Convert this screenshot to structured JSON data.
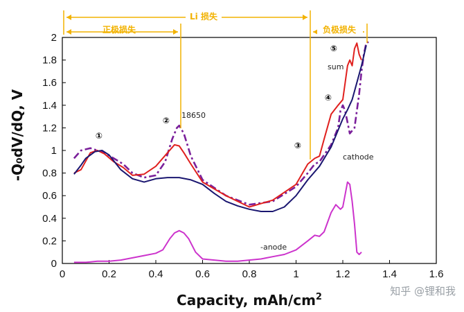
{
  "chart_data": {
    "type": "line",
    "xlabel": "Capacity, mAh/cm",
    "xlabel_sup": "2",
    "ylabel": "-Q₀dV/dQ, V",
    "xlim": [
      0,
      1.6
    ],
    "ylim": [
      0,
      2
    ],
    "xticks": [
      "0",
      "0.2",
      "0.4",
      "0.6",
      "0.8",
      "1",
      "1.2",
      "1.4",
      "1.6"
    ],
    "yticks": [
      "0",
      "0.2",
      "0.4",
      "0.6",
      "0.8",
      "1",
      "1.2",
      "1.4",
      "1.6",
      "1.8",
      "2"
    ],
    "series": [
      {
        "name": "18650",
        "style": "dash-dot",
        "color": "#7a1f9a",
        "x": [
          0.05,
          0.08,
          0.12,
          0.15,
          0.18,
          0.22,
          0.26,
          0.3,
          0.35,
          0.4,
          0.44,
          0.47,
          0.49,
          0.5,
          0.52,
          0.55,
          0.6,
          0.7,
          0.8,
          0.9,
          1.0,
          1.05,
          1.08,
          1.1,
          1.15,
          1.18,
          1.19,
          1.2,
          1.21,
          1.23,
          1.25,
          1.27,
          1.28,
          1.29,
          1.3,
          1.31
        ],
        "y": [
          0.93,
          1.0,
          1.02,
          1.0,
          0.98,
          0.93,
          0.88,
          0.8,
          0.76,
          0.78,
          0.9,
          1.1,
          1.2,
          1.22,
          1.15,
          0.95,
          0.74,
          0.6,
          0.52,
          0.55,
          0.68,
          0.8,
          0.88,
          0.9,
          1.05,
          1.2,
          1.35,
          1.4,
          1.35,
          1.15,
          1.2,
          1.5,
          1.7,
          1.85,
          1.95,
          1.96
        ]
      },
      {
        "name": "sum",
        "style": "solid",
        "color": "#e0201e",
        "x": [
          0.05,
          0.08,
          0.12,
          0.15,
          0.18,
          0.22,
          0.26,
          0.3,
          0.35,
          0.4,
          0.45,
          0.48,
          0.5,
          0.52,
          0.55,
          0.6,
          0.7,
          0.8,
          0.9,
          1.0,
          1.05,
          1.08,
          1.1,
          1.12,
          1.15,
          1.18,
          1.2,
          1.21,
          1.22,
          1.23,
          1.24,
          1.25,
          1.26,
          1.27,
          1.28
        ],
        "y": [
          0.8,
          0.83,
          0.98,
          1.0,
          0.97,
          0.9,
          0.85,
          0.78,
          0.79,
          0.86,
          0.98,
          1.05,
          1.04,
          0.98,
          0.88,
          0.72,
          0.6,
          0.5,
          0.56,
          0.7,
          0.88,
          0.93,
          0.95,
          1.1,
          1.32,
          1.4,
          1.45,
          1.6,
          1.75,
          1.8,
          1.75,
          1.9,
          1.95,
          1.85,
          1.8
        ]
      },
      {
        "name": "cathode",
        "style": "solid",
        "color": "#1a1670",
        "x": [
          0.05,
          0.08,
          0.1,
          0.14,
          0.17,
          0.2,
          0.25,
          0.3,
          0.35,
          0.4,
          0.45,
          0.5,
          0.55,
          0.6,
          0.65,
          0.7,
          0.75,
          0.8,
          0.85,
          0.9,
          0.95,
          1.0,
          1.05,
          1.1,
          1.15,
          1.18,
          1.2,
          1.22,
          1.24,
          1.26,
          1.28,
          1.3
        ],
        "y": [
          0.79,
          0.87,
          0.93,
          0.99,
          1.0,
          0.96,
          0.83,
          0.75,
          0.72,
          0.75,
          0.76,
          0.76,
          0.74,
          0.7,
          0.62,
          0.55,
          0.51,
          0.48,
          0.46,
          0.46,
          0.5,
          0.6,
          0.74,
          0.86,
          1.03,
          1.18,
          1.28,
          1.36,
          1.45,
          1.6,
          1.75,
          1.93
        ]
      },
      {
        "name": "-anode",
        "style": "solid",
        "color": "#cc33cc",
        "x": [
          0.05,
          0.1,
          0.15,
          0.2,
          0.25,
          0.3,
          0.35,
          0.4,
          0.43,
          0.46,
          0.48,
          0.5,
          0.52,
          0.54,
          0.57,
          0.6,
          0.65,
          0.7,
          0.75,
          0.8,
          0.85,
          0.9,
          0.95,
          1.0,
          1.05,
          1.08,
          1.1,
          1.12,
          1.15,
          1.17,
          1.19,
          1.2,
          1.22,
          1.23,
          1.24,
          1.25,
          1.26,
          1.27,
          1.28
        ],
        "y": [
          0.01,
          0.01,
          0.02,
          0.02,
          0.03,
          0.05,
          0.07,
          0.09,
          0.12,
          0.22,
          0.27,
          0.29,
          0.27,
          0.22,
          0.1,
          0.04,
          0.03,
          0.02,
          0.02,
          0.03,
          0.04,
          0.06,
          0.08,
          0.12,
          0.2,
          0.25,
          0.24,
          0.28,
          0.45,
          0.52,
          0.48,
          0.5,
          0.72,
          0.7,
          0.55,
          0.35,
          0.1,
          0.08,
          0.1
        ]
      }
    ],
    "annotations": {
      "li_loss": "Li 损失",
      "cathode_loss": "正极损失",
      "anode_loss": "负极损失",
      "label_18650": "18650",
      "label_sum": "sum",
      "label_cathode": "cathode",
      "label_anode": "-anode",
      "markers": [
        "①",
        "②",
        "③",
        "④",
        "⑤"
      ]
    }
  },
  "watermark": "知乎 @锂和我"
}
